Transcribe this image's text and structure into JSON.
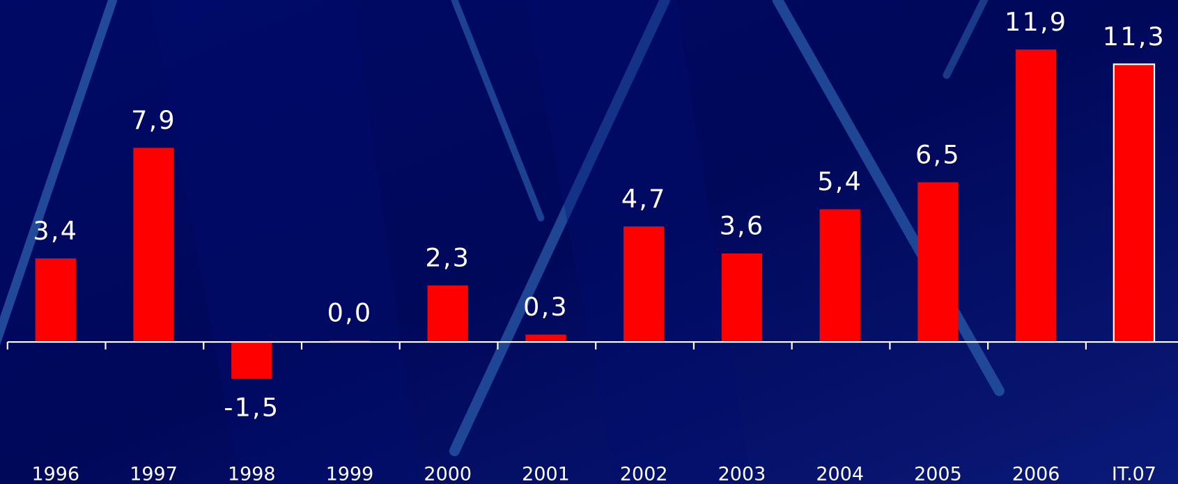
{
  "chart_data": {
    "type": "bar",
    "categories": [
      "1996",
      "1997",
      "1998",
      "1999",
      "2000",
      "2001",
      "2002",
      "2003",
      "2004",
      "2005",
      "2006",
      "IT.07"
    ],
    "values": [
      3.4,
      7.9,
      -1.5,
      0.0,
      2.3,
      0.3,
      4.7,
      3.6,
      5.4,
      6.5,
      11.9,
      11.3
    ],
    "value_labels": [
      "3,4",
      "7,9",
      "-1,5",
      "0,0",
      "2,3",
      "0,3",
      "4,7",
      "3,6",
      "5,4",
      "6,5",
      "11,9",
      "11,3"
    ],
    "color": "#ff0000"
  }
}
